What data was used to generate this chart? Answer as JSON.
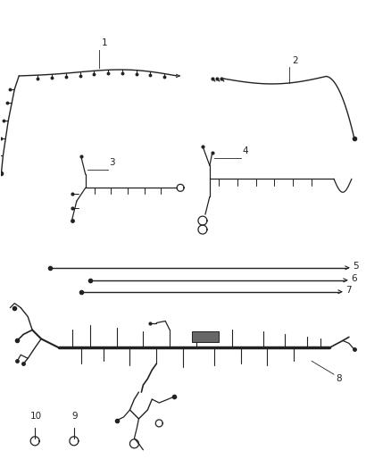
{
  "background_color": "#ffffff",
  "fig_width": 4.38,
  "fig_height": 5.33,
  "dpi": 100,
  "label_fontsize": 7.5,
  "line_color": "#222222",
  "line_width": 0.9
}
